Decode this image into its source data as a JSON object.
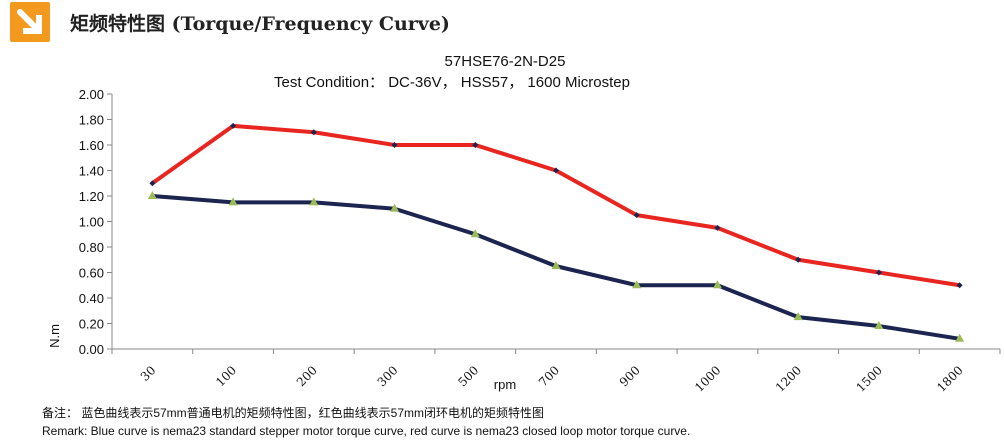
{
  "header": {
    "title": "矩频特性图 (Torque/Frequency Curve)",
    "icon": "arrow-down-right-icon",
    "badge_color": "#f39a1e"
  },
  "chart_data": {
    "type": "line",
    "title": "57HSE76-2N-D25",
    "subtitle": "Test Condition：  DC-36V，  HSS57，  1600 Microstep",
    "xlabel": "rpm",
    "ylabel": "N.m",
    "ylim": [
      0,
      2.0
    ],
    "yticks": [
      "0.00",
      "0.20",
      "0.40",
      "0.60",
      "0.80",
      "1.00",
      "1.20",
      "1.40",
      "1.60",
      "1.80",
      "2.00"
    ],
    "categories": [
      "30",
      "100",
      "200",
      "300",
      "500",
      "700",
      "900",
      "1000",
      "1200",
      "1500",
      "1800"
    ],
    "grid": false,
    "legend": "none",
    "series": [
      {
        "name": "closed loop",
        "color": "#e8251f",
        "marker": "diamond",
        "marker_color": "#1c2450",
        "values": [
          1.3,
          1.75,
          1.7,
          1.6,
          1.6,
          1.4,
          1.05,
          0.95,
          0.7,
          0.6,
          0.5
        ]
      },
      {
        "name": "standard",
        "color": "#1c2450",
        "marker": "triangle",
        "marker_color": "#9bbb59",
        "values": [
          1.2,
          1.15,
          1.15,
          1.1,
          0.9,
          0.65,
          0.5,
          0.5,
          0.25,
          0.18,
          0.08
        ]
      }
    ]
  },
  "footnote": {
    "cn": "备注： 蓝色曲线表示57mm普通电机的矩频特性图，红色曲线表示57mm闭环电机的矩频特性图",
    "en": "Remark: Blue curve is nema23 standard stepper motor torque curve, red curve is nema23 closed loop motor torque curve."
  }
}
